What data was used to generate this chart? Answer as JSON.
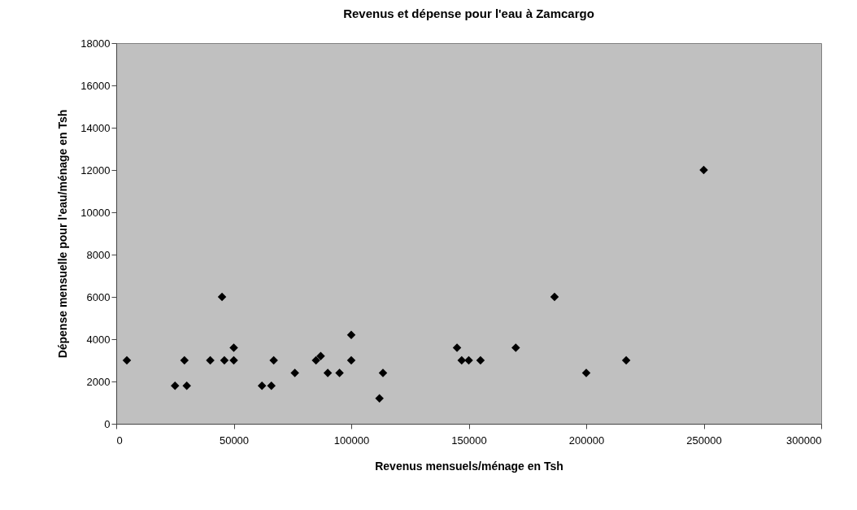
{
  "chart_data": {
    "type": "scatter",
    "title": "Revenus et dépense pour l'eau à Zamcargo",
    "xlabel": "Revenus mensuels/ménage en Tsh",
    "ylabel": "Dépense mensuelle pour l'eau/ménage en Tsh",
    "x": [
      4500,
      25000,
      29000,
      30000,
      40000,
      45000,
      46000,
      50000,
      50000,
      62000,
      66000,
      67000,
      76000,
      85000,
      87000,
      90000,
      95000,
      100000,
      100000,
      112000,
      113500,
      145000,
      147000,
      150000,
      155000,
      170000,
      186500,
      200000,
      217000,
      250000
    ],
    "series": [
      {
        "color": "#000000",
        "values": [
          3000,
          1800,
          3000,
          1800,
          3000,
          6000,
          3000,
          3600,
          3000,
          1800,
          1800,
          3000,
          2400,
          3000,
          3200,
          2400,
          2400,
          4200,
          3000,
          1200,
          2400,
          3600,
          3000,
          3000,
          3000,
          3600,
          6000,
          2400,
          3000,
          12000
        ]
      }
    ],
    "xlim": [
      0,
      300000
    ],
    "xticks": [
      0,
      50000,
      100000,
      150000,
      200000,
      250000,
      300000
    ],
    "ylim": [
      0,
      18000
    ],
    "yticks": [
      0,
      2000,
      4000,
      6000,
      8000,
      10000,
      12000,
      14000,
      16000,
      18000
    ],
    "grid": false,
    "marker": "diamond"
  }
}
